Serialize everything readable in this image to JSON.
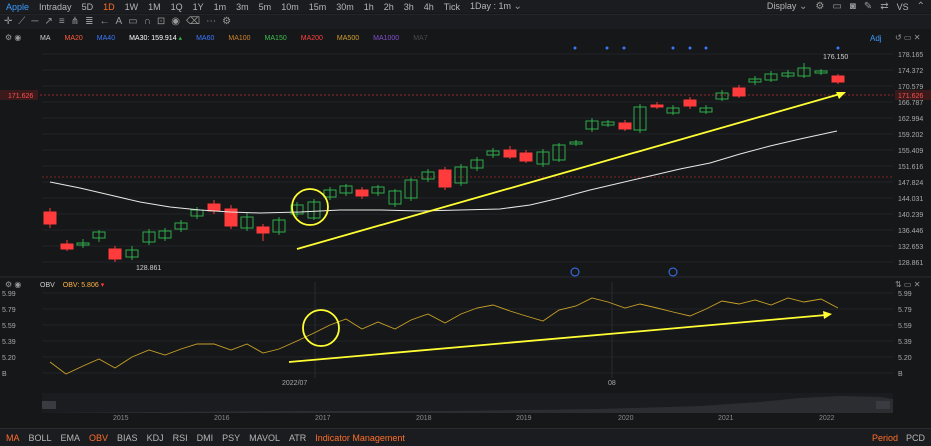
{
  "topbar": {
    "symbol": "Apple",
    "tabs": [
      "Intraday",
      "5D",
      "1D",
      "1W",
      "1M",
      "1Q",
      "1Y",
      "1m",
      "3m",
      "5m",
      "10m",
      "15m",
      "30m",
      "1h",
      "2h",
      "3h",
      "4h",
      "Tick",
      "1Day : 1m"
    ],
    "active_tab": "1D",
    "display_label": "Display",
    "right_text": "VS"
  },
  "ma_legend": {
    "label": "MA",
    "items": [
      {
        "name": "MA20",
        "value": "",
        "color": "#ff5a3c"
      },
      {
        "name": "MA40",
        "value": "",
        "color": "#3b78ff"
      },
      {
        "name": "MA30:",
        "value": "159.914",
        "color": "#ffffff"
      },
      {
        "name": "MA60",
        "value": "",
        "color": "#3b78ff"
      },
      {
        "name": "MA100",
        "value": "",
        "color": "#d08030"
      },
      {
        "name": "MA150",
        "value": "",
        "color": "#3fbf4f"
      },
      {
        "name": "MA200",
        "value": "",
        "color": "#ff4040"
      },
      {
        "name": "MA500",
        "value": "",
        "color": "#d0a030"
      },
      {
        "name": "MA1000",
        "value": "",
        "color": "#8050d0"
      },
      {
        "name": "MA7",
        "value": "",
        "color": "#4a4a4a"
      }
    ],
    "adj_label": "Adj"
  },
  "price_axis": {
    "ticks": [
      "178.165",
      "174.372",
      "170.579",
      "166.787",
      "162.994",
      "159.202",
      "155.409",
      "151.616",
      "147.824",
      "144.031",
      "140.239",
      "136.446",
      "132.653",
      "128.861"
    ],
    "current_price": "171.626",
    "high_label": "176.150",
    "low_label": "128.861"
  },
  "obv_legend": {
    "label": "OBV",
    "name": "OBV:",
    "value": "5.806"
  },
  "obv_axis": {
    "ticks": [
      "5.99",
      "5.79",
      "5.59",
      "5.39",
      "5.20",
      "B"
    ]
  },
  "obv_date_labels": [
    "2022/07",
    "08"
  ],
  "timeline": {
    "labels": [
      "2015",
      "2016",
      "2017",
      "2018",
      "2019",
      "2020",
      "2021",
      "2022"
    ]
  },
  "bottombar": {
    "indicators": [
      "MA",
      "BOLL",
      "EMA",
      "OBV",
      "BIAS",
      "KDJ",
      "RSI",
      "DMI",
      "PSY",
      "MAVOL",
      "ATR"
    ],
    "active_indicators": [
      "MA",
      "OBV"
    ],
    "management": "Indicator Management",
    "period_label": "Period",
    "pcd_label": "PCD"
  },
  "colors": {
    "up": "#2fae4a",
    "down": "#ff3b3b",
    "annotation": "#ffff33",
    "obv_line": "#c9a227",
    "ma30": "#e8e8e8",
    "accent": "#ff6e2a"
  }
}
